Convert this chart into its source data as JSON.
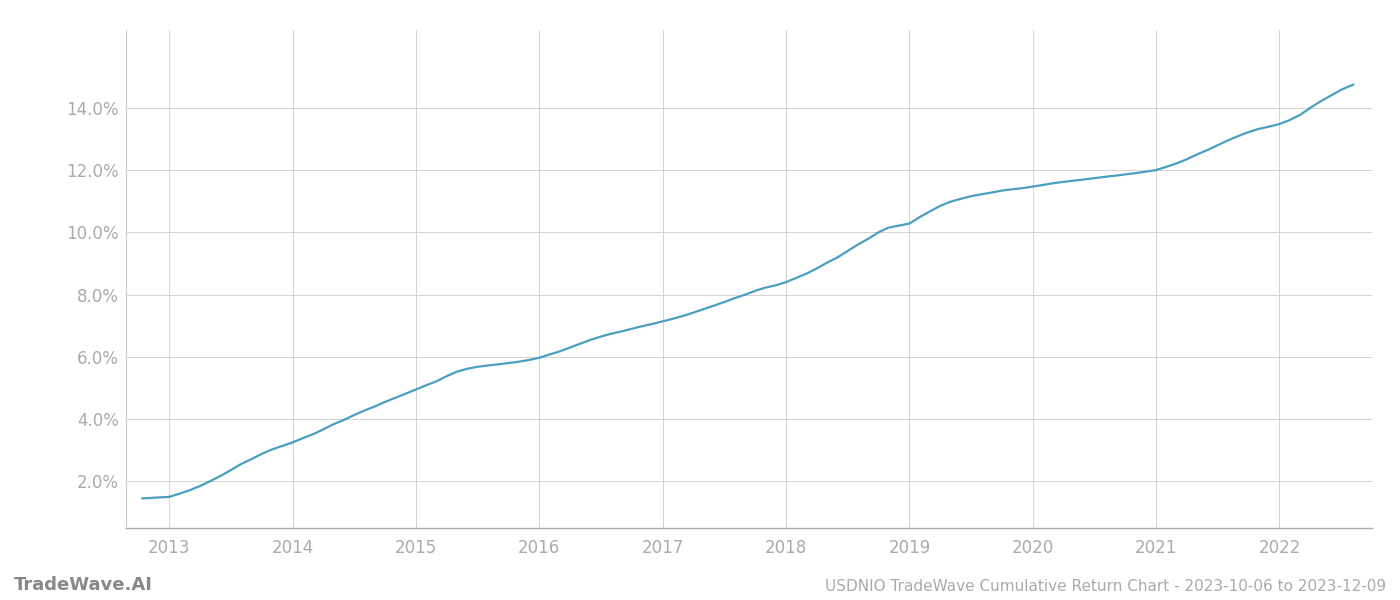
{
  "title": "USDNIO TradeWave Cumulative Return Chart - 2023-10-06 to 2023-12-09",
  "watermark": "TradeWave.AI",
  "line_color": "#4a9fc0",
  "background_color": "#ffffff",
  "grid_color": "#cccccc",
  "x_data": [
    2012.78,
    2013.0,
    2013.08,
    2013.17,
    2013.25,
    2013.33,
    2013.42,
    2013.5,
    2013.58,
    2013.67,
    2013.75,
    2013.83,
    2013.92,
    2014.0,
    2014.08,
    2014.17,
    2014.25,
    2014.33,
    2014.42,
    2014.5,
    2014.58,
    2014.67,
    2014.75,
    2014.83,
    2014.92,
    2015.0,
    2015.08,
    2015.17,
    2015.25,
    2015.33,
    2015.42,
    2015.5,
    2015.58,
    2015.67,
    2015.75,
    2015.83,
    2015.92,
    2016.0,
    2016.08,
    2016.17,
    2016.25,
    2016.33,
    2016.42,
    2016.5,
    2016.58,
    2016.67,
    2016.75,
    2016.83,
    2016.92,
    2017.0,
    2017.08,
    2017.17,
    2017.25,
    2017.33,
    2017.42,
    2017.5,
    2017.58,
    2017.67,
    2017.75,
    2017.83,
    2017.92,
    2018.0,
    2018.08,
    2018.17,
    2018.25,
    2018.33,
    2018.42,
    2018.5,
    2018.58,
    2018.67,
    2018.75,
    2018.83,
    2018.92,
    2019.0,
    2019.08,
    2019.17,
    2019.25,
    2019.33,
    2019.42,
    2019.5,
    2019.58,
    2019.67,
    2019.75,
    2019.83,
    2019.92,
    2020.0,
    2020.08,
    2020.17,
    2020.25,
    2020.33,
    2020.42,
    2020.5,
    2020.58,
    2020.67,
    2020.75,
    2020.83,
    2020.92,
    2021.0,
    2021.08,
    2021.17,
    2021.25,
    2021.33,
    2021.42,
    2021.5,
    2021.58,
    2021.67,
    2021.75,
    2021.83,
    2021.92,
    2022.0,
    2022.08,
    2022.17,
    2022.25,
    2022.33,
    2022.42,
    2022.5,
    2022.6
  ],
  "y_data": [
    1.45,
    1.5,
    1.6,
    1.72,
    1.85,
    2.0,
    2.18,
    2.36,
    2.55,
    2.72,
    2.88,
    3.02,
    3.14,
    3.25,
    3.38,
    3.52,
    3.67,
    3.83,
    3.98,
    4.13,
    4.27,
    4.41,
    4.55,
    4.68,
    4.82,
    4.95,
    5.08,
    5.22,
    5.38,
    5.52,
    5.62,
    5.68,
    5.72,
    5.76,
    5.8,
    5.84,
    5.9,
    5.97,
    6.07,
    6.18,
    6.3,
    6.42,
    6.55,
    6.65,
    6.74,
    6.82,
    6.9,
    6.98,
    7.06,
    7.14,
    7.22,
    7.32,
    7.42,
    7.53,
    7.65,
    7.76,
    7.88,
    8.0,
    8.12,
    8.22,
    8.3,
    8.4,
    8.53,
    8.68,
    8.84,
    9.02,
    9.2,
    9.4,
    9.6,
    9.8,
    10.0,
    10.15,
    10.22,
    10.28,
    10.48,
    10.68,
    10.85,
    10.98,
    11.08,
    11.16,
    11.22,
    11.28,
    11.34,
    11.38,
    11.42,
    11.47,
    11.52,
    11.58,
    11.62,
    11.66,
    11.7,
    11.74,
    11.78,
    11.82,
    11.86,
    11.9,
    11.95,
    12.0,
    12.1,
    12.22,
    12.35,
    12.5,
    12.65,
    12.8,
    12.95,
    13.1,
    13.22,
    13.32,
    13.4,
    13.48,
    13.6,
    13.78,
    14.0,
    14.2,
    14.4,
    14.58,
    14.75
  ],
  "xlim": [
    2012.65,
    2022.75
  ],
  "ylim": [
    0.5,
    16.5
  ],
  "yticks": [
    2.0,
    4.0,
    6.0,
    8.0,
    10.0,
    12.0,
    14.0
  ],
  "xticks": [
    2013,
    2014,
    2015,
    2016,
    2017,
    2018,
    2019,
    2020,
    2021,
    2022
  ],
  "tick_color": "#aaaaaa",
  "label_fontsize": 12,
  "watermark_fontsize": 13,
  "title_fontsize": 11
}
